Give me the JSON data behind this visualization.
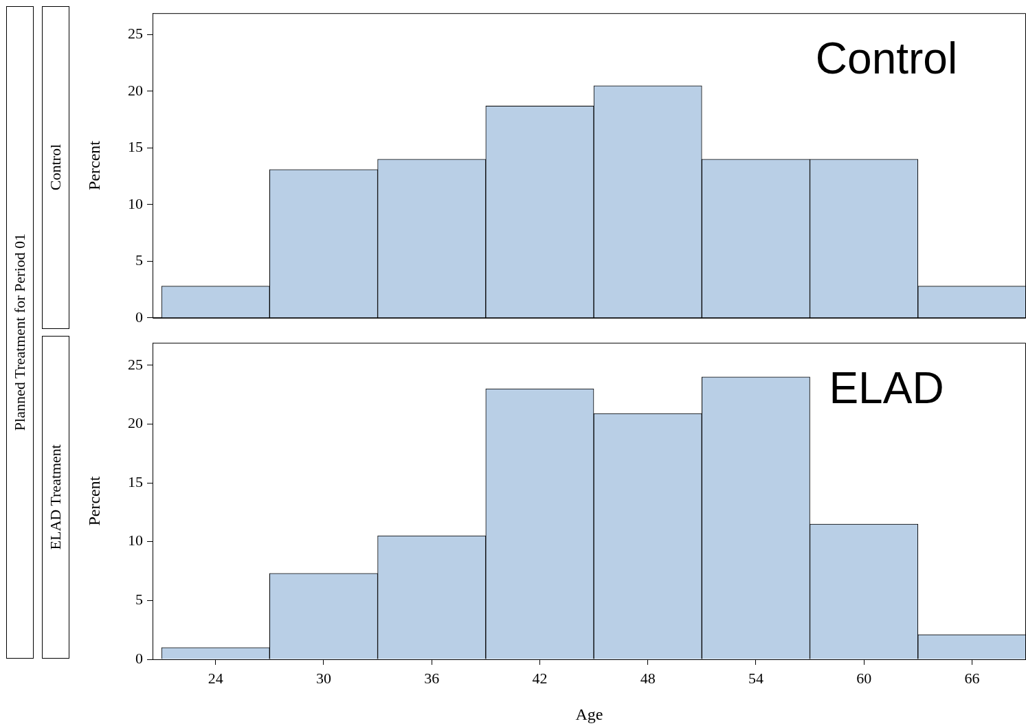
{
  "chart_data": [
    {
      "type": "histogram",
      "title": "Control",
      "ylabel": "Percent",
      "annotations": [
        "Control",
        "Planned Treatment for Period 01"
      ],
      "bins": [
        21,
        27,
        33,
        39,
        45,
        51,
        57,
        63,
        69
      ],
      "values": [
        2.8,
        13.1,
        14.0,
        18.7,
        20.5,
        14.0,
        14.0,
        2.8
      ],
      "color": "#b9cfe6",
      "xlim": [
        20.5,
        69
      ],
      "xticks": [
        24,
        30,
        36,
        42,
        48,
        54,
        60,
        66
      ],
      "ylim": [
        0,
        26.9
      ],
      "yticks": [
        0,
        5,
        10,
        15,
        20,
        25
      ],
      "tick_labels": "y",
      "grid": false,
      "legend": false
    },
    {
      "type": "histogram",
      "title": "ELAD Treatment",
      "ylabel": "Percent",
      "xlabel": "Age",
      "annotations": [
        "ELAD"
      ],
      "bins": [
        21,
        27,
        33,
        39,
        45,
        51,
        57,
        63,
        69
      ],
      "values": [
        1.0,
        7.3,
        10.5,
        23.0,
        20.9,
        24.0,
        11.5,
        2.1
      ],
      "color": "#b9cfe6",
      "xlim": [
        20.5,
        69
      ],
      "xticks": [
        24,
        30,
        36,
        42,
        48,
        54,
        60,
        66
      ],
      "ylim": [
        0,
        26.9
      ],
      "yticks": [
        0,
        5,
        10,
        15,
        20,
        25
      ],
      "grid": false,
      "legend": false
    }
  ]
}
